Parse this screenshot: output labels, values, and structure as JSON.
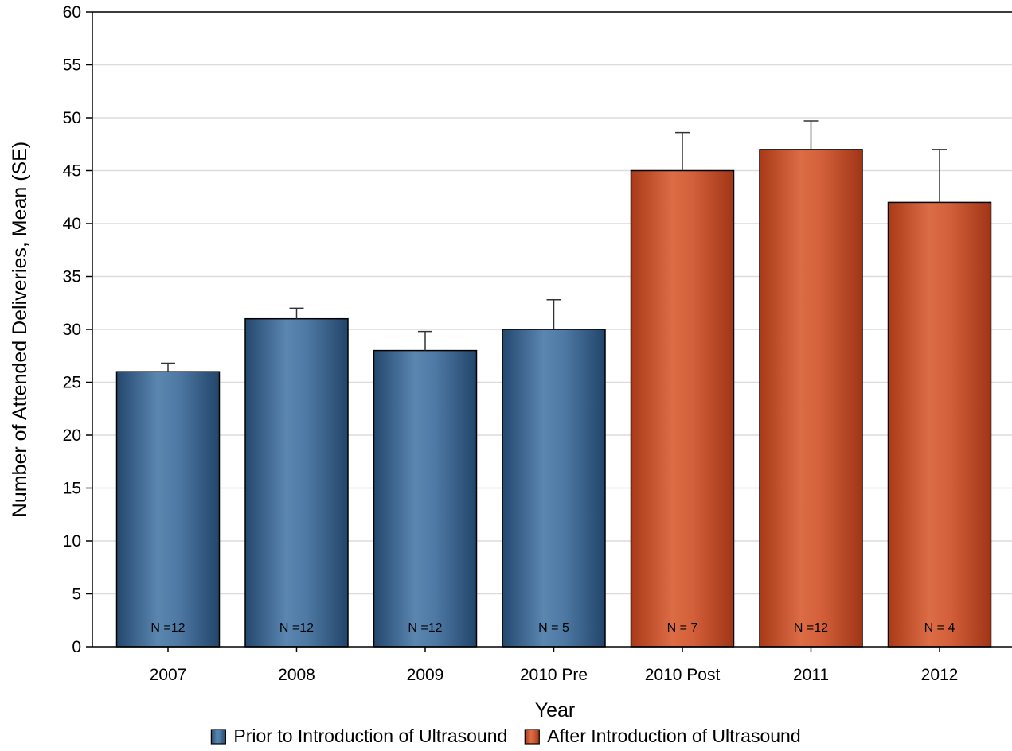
{
  "chart_data": {
    "type": "bar",
    "xlabel": "Year",
    "ylabel": "Number of Attended Deliveries, Mean (SE)",
    "ylim": [
      0,
      60
    ],
    "yticks": [
      0,
      5,
      10,
      15,
      20,
      25,
      30,
      35,
      40,
      45,
      50,
      55,
      60
    ],
    "grid": true,
    "categories": [
      "2007",
      "2008",
      "2009",
      "2010 Pre",
      "2010 Post",
      "2011",
      "2012"
    ],
    "values": [
      26,
      31,
      28,
      30,
      45,
      47,
      42
    ],
    "error_upper": [
      26.8,
      32.0,
      29.8,
      32.8,
      48.6,
      49.7,
      47.0
    ],
    "n_labels": [
      "N =12",
      "N =12",
      "N =12",
      "N = 5",
      "N = 7",
      "N =12",
      "N = 4"
    ],
    "group": [
      "prior",
      "prior",
      "prior",
      "prior",
      "after",
      "after",
      "after"
    ],
    "legend_position": "bottom",
    "legend": [
      {
        "key": "prior",
        "label": "Prior to Introduction of Ultrasound",
        "color": "#3a6894"
      },
      {
        "key": "after",
        "label": "After Introduction of Ultrasound",
        "color": "#c8522a"
      }
    ]
  }
}
